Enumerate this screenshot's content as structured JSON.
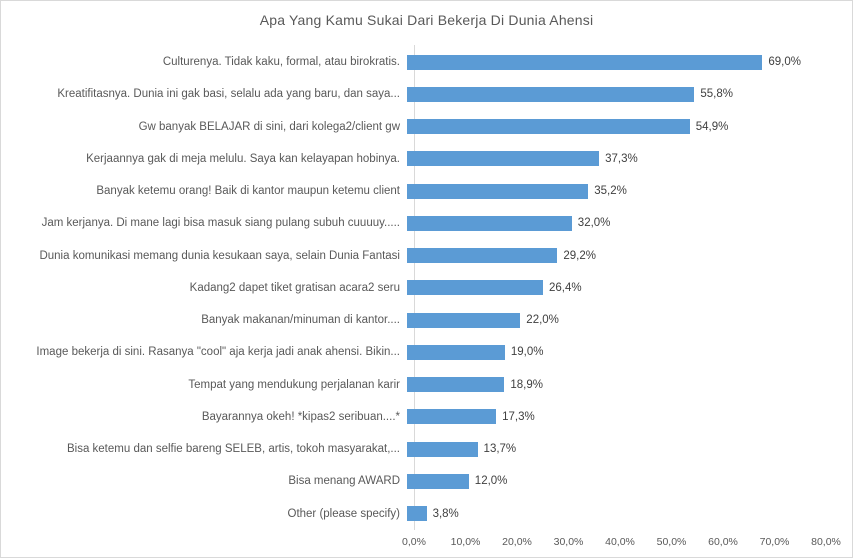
{
  "chart_data": {
    "type": "bar",
    "orientation": "horizontal",
    "title": "Apa Yang Kamu Sukai Dari Bekerja Di Dunia Ahensi",
    "categories": [
      "Culturenya. Tidak kaku, formal, atau birokratis.",
      "Kreatifitasnya. Dunia ini gak basi, selalu ada yang baru, dan saya...",
      "Gw banyak BELAJAR di sini, dari kolega2/client gw",
      "Kerjaannya gak di meja melulu. Saya kan kelayapan hobinya.",
      "Banyak ketemu orang! Baik di kantor maupun ketemu client",
      "Jam kerjanya. Di mane lagi bisa masuk siang pulang subuh cuuuuy.....",
      "Dunia komunikasi memang dunia kesukaan saya, selain Dunia Fantasi",
      "Kadang2 dapet tiket gratisan acara2 seru",
      "Banyak makanan/minuman di kantor....",
      "Image bekerja di sini. Rasanya \"cool\" aja kerja jadi anak ahensi. Bikin...",
      "Tempat yang mendukung perjalanan karir",
      "Bayarannya okeh! *kipas2 seribuan....*",
      "Bisa ketemu dan selfie bareng SELEB, artis, tokoh masyarakat,...",
      "Bisa menang AWARD",
      "Other (please specify)"
    ],
    "values": [
      69.0,
      55.8,
      54.9,
      37.3,
      35.2,
      32.0,
      29.2,
      26.4,
      22.0,
      19.0,
      18.9,
      17.3,
      13.7,
      12.0,
      3.8
    ],
    "value_labels": [
      "69,0%",
      "55,8%",
      "54,9%",
      "37,3%",
      "35,2%",
      "32,0%",
      "29,2%",
      "26,4%",
      "22,0%",
      "19,0%",
      "18,9%",
      "17,3%",
      "13,7%",
      "12,0%",
      "3,8%"
    ],
    "x_ticks": [
      "0,0%",
      "10,0%",
      "20,0%",
      "30,0%",
      "40,0%",
      "50,0%",
      "60,0%",
      "70,0%",
      "80,0%"
    ],
    "xlim": [
      0,
      80
    ],
    "xlabel": "",
    "ylabel": "",
    "grid": false,
    "legend": false,
    "bar_color": "#5b9bd5",
    "axis_line_color": "#d9d9d9",
    "title_color": "#595959",
    "category_text_color": "#595959",
    "value_text_color": "#404040"
  }
}
